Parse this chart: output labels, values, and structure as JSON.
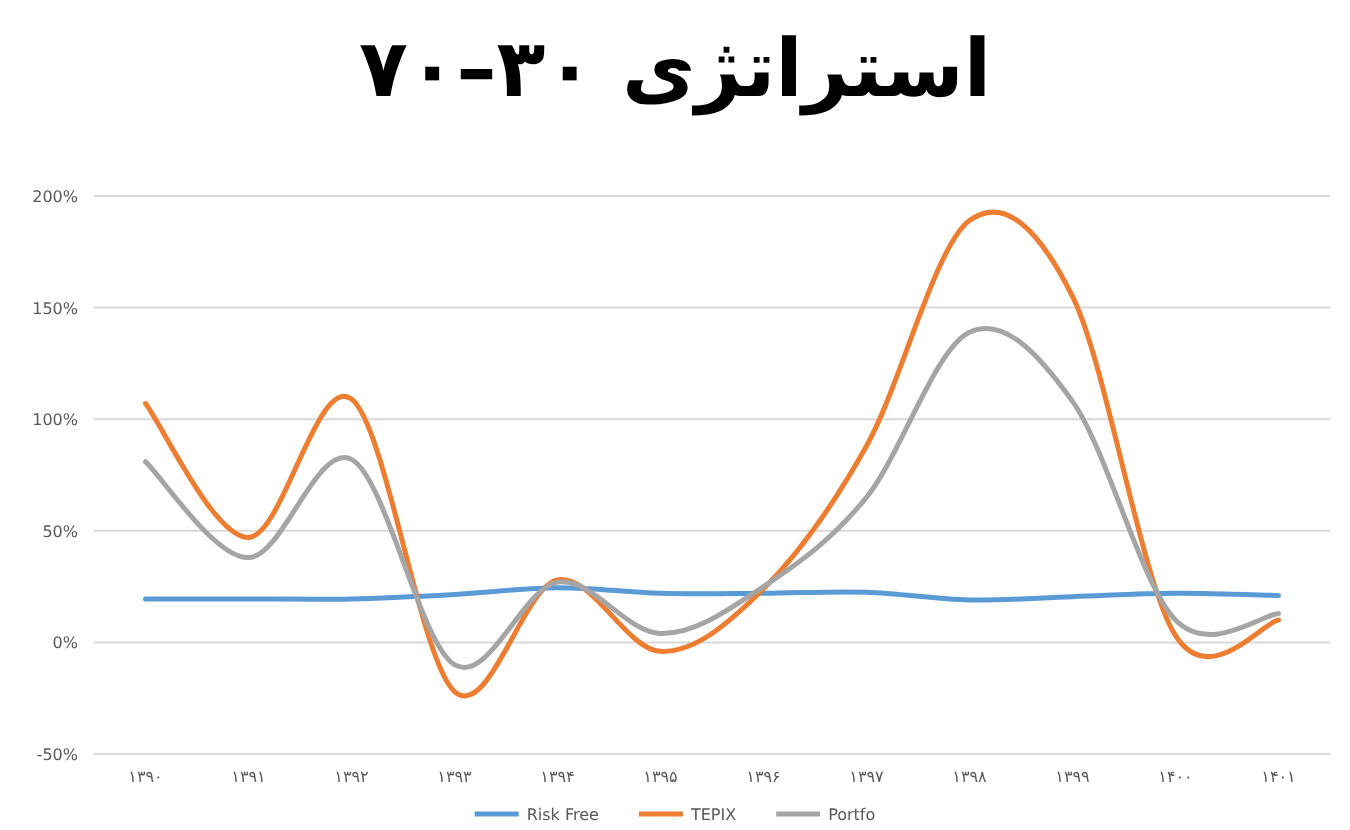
{
  "chart_data": {
    "type": "line",
    "title": "استراتژی ۳۰–۷۰",
    "categories": [
      "۱۳۹۰",
      "۱۳۹۱",
      "۱۳۹۲",
      "۱۳۹۳",
      "۱۳۹۴",
      "۱۳۹۵",
      "۱۳۹۶",
      "۱۳۹۷",
      "۱۳۹۸",
      "۱۳۹۹",
      "۱۴۰۰",
      "۱۴۰۱"
    ],
    "series": [
      {
        "name": "Risk Free",
        "color": "#5b9bd5",
        "values": [
          19.5,
          19.5,
          19.5,
          21.5,
          24.5,
          22,
          22,
          22.5,
          19,
          20.5,
          22,
          21
        ]
      },
      {
        "name": "TEPIX",
        "color": "#ed7d31",
        "values": [
          107,
          47,
          109,
          -22,
          28,
          -4,
          24,
          88,
          189,
          155,
          3,
          10
        ]
      },
      {
        "name": "Portfo",
        "color": "#a5a5a5",
        "values": [
          81,
          38,
          82,
          -10,
          27,
          4,
          25,
          65,
          139,
          108,
          10,
          13
        ]
      }
    ],
    "ylim": [
      -50,
      200
    ],
    "yticks": [
      {
        "value": -50,
        "label": "-50%"
      },
      {
        "value": 0,
        "label": "0%"
      },
      {
        "value": 50,
        "label": "50%"
      },
      {
        "value": 100,
        "label": "100%"
      },
      {
        "value": 150,
        "label": "150%"
      },
      {
        "value": 200,
        "label": "200%"
      }
    ],
    "grid": "y",
    "legend": "bottom",
    "marker": "none",
    "line_style": "solid"
  }
}
